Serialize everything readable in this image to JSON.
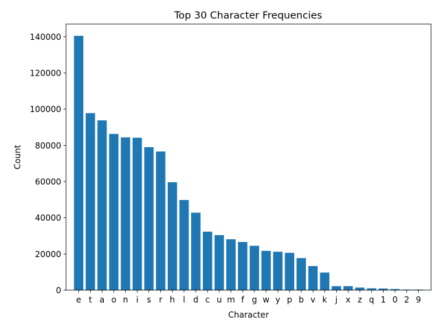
{
  "chart_data": {
    "type": "bar",
    "title": "Top 30 Character Frequencies",
    "xlabel": "Character",
    "ylabel": "Count",
    "ylim": [
      0,
      147000
    ],
    "yticks": [
      0,
      20000,
      40000,
      60000,
      80000,
      100000,
      120000,
      140000
    ],
    "grid": false,
    "bar_color": "#1f77b4",
    "categories": [
      "e",
      "t",
      "a",
      "o",
      "n",
      "i",
      "s",
      "r",
      "h",
      "l",
      "d",
      "c",
      "u",
      "m",
      "f",
      "g",
      "w",
      "y",
      "p",
      "b",
      "v",
      "k",
      "j",
      "x",
      "z",
      "q",
      "1",
      "0",
      "2",
      "9"
    ],
    "values": [
      140500,
      97800,
      93800,
      86300,
      84400,
      84200,
      79000,
      76600,
      59600,
      49800,
      42800,
      32300,
      30400,
      28100,
      26600,
      24500,
      21700,
      21200,
      20600,
      17700,
      13300,
      9700,
      2200,
      2200,
      1400,
      1000,
      900,
      600,
      300,
      300
    ]
  }
}
